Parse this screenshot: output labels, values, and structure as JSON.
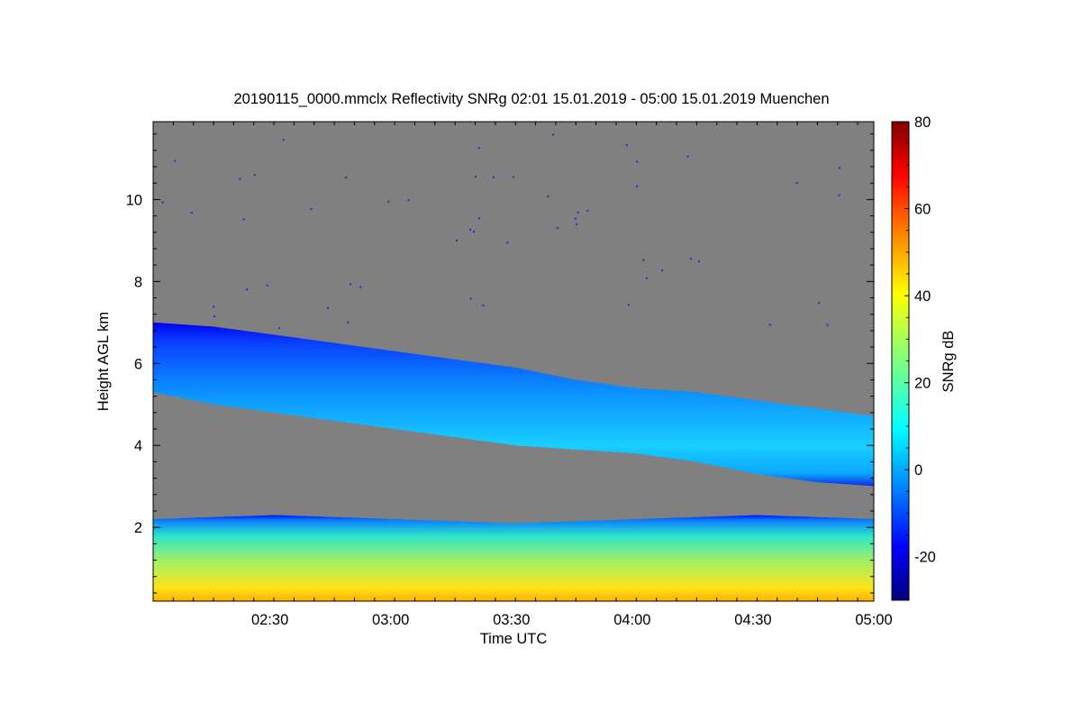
{
  "chart_data": {
    "type": "heatmap",
    "title": "20190115_0000.mmclx Reflectivity SNRg   02:01 15.01.2019 - 05:00 15.01.2019 Muenchen",
    "xlabel": "Time UTC",
    "ylabel": "Height AGL km",
    "colorbar_label": "SNRg dB",
    "x_range": [
      "02:01",
      "05:00"
    ],
    "y_range_km": [
      0.2,
      11.9
    ],
    "x_ticks": [
      "02:30",
      "03:00",
      "03:30",
      "04:00",
      "04:30",
      "05:00"
    ],
    "y_ticks": [
      "2",
      "4",
      "6",
      "8",
      "10"
    ],
    "colorbar_range_db": [
      -30,
      80
    ],
    "colorbar_ticks": [
      "-20",
      "0",
      "20",
      "40",
      "60",
      "80"
    ],
    "background_color": "#808080",
    "colormap": [
      "#00007f",
      "#0000ff",
      "#007fff",
      "#00ffff",
      "#7fff7f",
      "#ffff00",
      "#ff7f00",
      "#ff0000",
      "#7f0000"
    ],
    "features": [
      {
        "name": "cloud layer",
        "snr_db_typical": [
          -20,
          10
        ],
        "top_km": [
          [
            0,
            7.0
          ],
          [
            15,
            6.9
          ],
          [
            30,
            6.7
          ],
          [
            45,
            6.5
          ],
          [
            60,
            6.3
          ],
          [
            75,
            6.1
          ],
          [
            90,
            5.9
          ],
          [
            105,
            5.6
          ],
          [
            120,
            5.4
          ],
          [
            135,
            5.3
          ],
          [
            150,
            5.1
          ],
          [
            165,
            4.9
          ],
          [
            180,
            4.7
          ]
        ],
        "base_km": [
          [
            0,
            5.3
          ],
          [
            15,
            5.0
          ],
          [
            30,
            4.8
          ],
          [
            45,
            4.6
          ],
          [
            60,
            4.4
          ],
          [
            75,
            4.2
          ],
          [
            90,
            4.0
          ],
          [
            105,
            3.9
          ],
          [
            120,
            3.8
          ],
          [
            135,
            3.6
          ],
          [
            150,
            3.3
          ],
          [
            165,
            3.1
          ],
          [
            180,
            3.0
          ]
        ]
      },
      {
        "name": "boundary layer",
        "snr_db_typical": [
          10,
          55
        ],
        "top_km": [
          [
            0,
            2.2
          ],
          [
            30,
            2.3
          ],
          [
            60,
            2.2
          ],
          [
            90,
            2.1
          ],
          [
            120,
            2.2
          ],
          [
            150,
            2.3
          ],
          [
            180,
            2.2
          ]
        ],
        "base_km": [
          [
            0,
            0.2
          ],
          [
            180,
            0.2
          ]
        ]
      }
    ]
  }
}
